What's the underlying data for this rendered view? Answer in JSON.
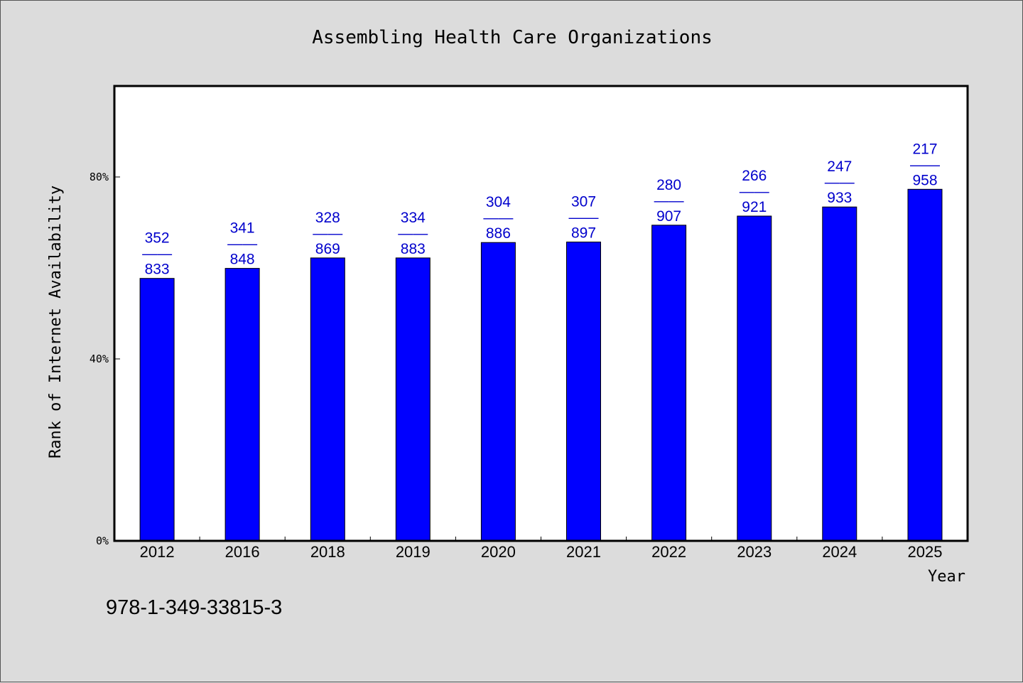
{
  "chart_data": {
    "type": "bar",
    "title": "Assembling Health Care Organizations",
    "xlabel": "Year",
    "ylabel": "Rank of Internet Availability",
    "categories": [
      "2012",
      "2016",
      "2018",
      "2019",
      "2020",
      "2021",
      "2022",
      "2023",
      "2024",
      "2025"
    ],
    "values": [
      57.7,
      59.9,
      62.2,
      62.2,
      65.6,
      65.7,
      69.4,
      71.4,
      73.4,
      77.3
    ],
    "value_unit": "%",
    "ylim": [
      0,
      100
    ],
    "yticks": [
      0,
      40,
      80
    ],
    "ytick_labels": [
      "0%",
      "40%",
      "80%"
    ],
    "data_labels": [
      {
        "top": "352",
        "sep": "——",
        "bottom": "833"
      },
      {
        "top": "341",
        "sep": "——",
        "bottom": "848"
      },
      {
        "top": "328",
        "sep": "——",
        "bottom": "869"
      },
      {
        "top": "334",
        "sep": "——",
        "bottom": "883"
      },
      {
        "top": "304",
        "sep": "——",
        "bottom": "886"
      },
      {
        "top": "307",
        "sep": "——",
        "bottom": "897"
      },
      {
        "top": "280",
        "sep": "——",
        "bottom": "907"
      },
      {
        "top": "266",
        "sep": "——",
        "bottom": "921"
      },
      {
        "top": "247",
        "sep": "——",
        "bottom": "933"
      },
      {
        "top": "217",
        "sep": "——",
        "bottom": "958"
      }
    ],
    "grid": false,
    "legend": "none",
    "colors": {
      "bar": "#0000ff",
      "label": "#0000cc",
      "plot_bg": "#ffffff",
      "page_bg": "#dcdcdc"
    }
  },
  "footer": {
    "isbn": "978-1-349-33815-3"
  }
}
